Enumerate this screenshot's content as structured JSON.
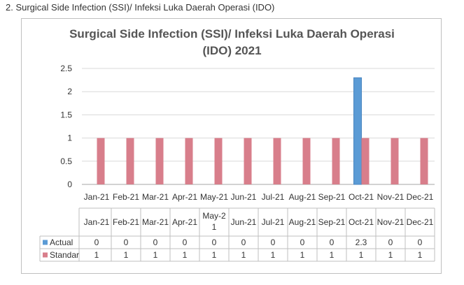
{
  "document": {
    "heading": "2.   Surgical Side Infection (SSI)/ Infeksi Luka Daerah Operasi (IDO)"
  },
  "chart_data": {
    "type": "bar",
    "title_line1": "Surgical Side Infection (SSI)/ Infeksi Luka Daerah Operasi",
    "title_line2": "(IDO) 2021",
    "categories": [
      "Jan-21",
      "Feb-21",
      "Mar-21",
      "Apr-21",
      "May-21",
      "Jun-21",
      "Jul-21",
      "Aug-21",
      "Sep-21",
      "Oct-21",
      "Nov-21",
      "Dec-21"
    ],
    "table_categories": [
      "Jan-21",
      "Feb-21",
      "Mar-21",
      "Apr-21",
      [
        "May-2",
        "1"
      ],
      "Jun-21",
      "Jul-21",
      "Aug-21",
      "Sep-21",
      "Oct-21",
      "Nov-21",
      "Dec-21"
    ],
    "series": [
      {
        "name": "Actual",
        "color": "#5b9bd5",
        "values": [
          0,
          0,
          0,
          0,
          0,
          0,
          0,
          0,
          0,
          2.3,
          0,
          0
        ]
      },
      {
        "name": "Standar",
        "color": "#d87e8b",
        "values": [
          1,
          1,
          1,
          1,
          1,
          1,
          1,
          1,
          1,
          1,
          1,
          1
        ]
      }
    ],
    "yticks": [
      "0",
      "0.5",
      "1",
      "1.5",
      "2",
      "2.5"
    ],
    "ylim": [
      0,
      2.5
    ],
    "grid": true,
    "legend": "table"
  }
}
